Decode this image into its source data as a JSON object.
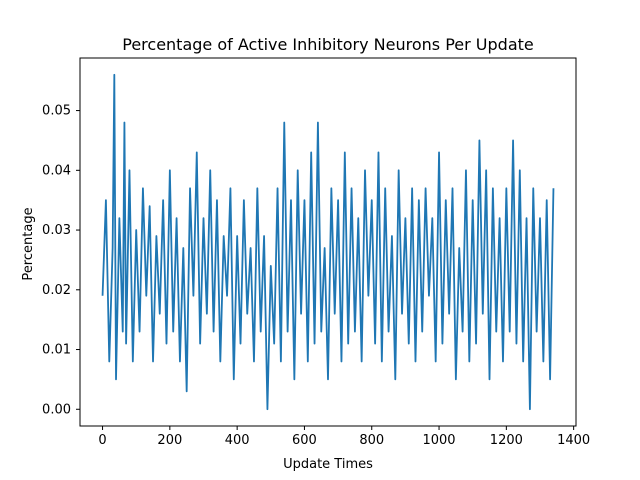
{
  "chart_data": {
    "type": "line",
    "title": "Percentage of Active Inhibitory Neurons Per Update",
    "xlabel": "Update Times",
    "ylabel": "Percentage",
    "xlim": [
      -67,
      1407
    ],
    "ylim": [
      -0.0028,
      0.0588
    ],
    "xticks": [
      0,
      200,
      400,
      600,
      800,
      1000,
      1200,
      1400
    ],
    "yticks": [
      0.0,
      0.01,
      0.02,
      0.03,
      0.04,
      0.05
    ],
    "xtick_labels": [
      "0",
      "200",
      "400",
      "600",
      "800",
      "1000",
      "1200",
      "1400"
    ],
    "ytick_labels": [
      "0.00",
      "0.01",
      "0.02",
      "0.03",
      "0.04",
      "0.05"
    ],
    "grid": false,
    "legend": false,
    "series": [
      {
        "color": "#1f77b4",
        "x": [
          0,
          10,
          20,
          30,
          35,
          40,
          50,
          60,
          65,
          70,
          80,
          90,
          100,
          110,
          120,
          130,
          140,
          150,
          160,
          170,
          180,
          190,
          200,
          210,
          220,
          230,
          240,
          250,
          260,
          270,
          280,
          290,
          300,
          310,
          320,
          330,
          340,
          350,
          360,
          370,
          380,
          390,
          400,
          410,
          420,
          430,
          440,
          450,
          460,
          470,
          480,
          490,
          500,
          510,
          520,
          530,
          540,
          550,
          560,
          570,
          580,
          590,
          600,
          610,
          620,
          630,
          640,
          650,
          660,
          670,
          680,
          690,
          700,
          710,
          720,
          730,
          740,
          750,
          760,
          770,
          780,
          790,
          800,
          810,
          820,
          830,
          840,
          850,
          860,
          870,
          880,
          890,
          900,
          910,
          920,
          930,
          940,
          950,
          960,
          970,
          980,
          990,
          1000,
          1010,
          1020,
          1030,
          1040,
          1050,
          1060,
          1070,
          1080,
          1090,
          1100,
          1110,
          1120,
          1130,
          1140,
          1150,
          1160,
          1170,
          1180,
          1190,
          1200,
          1210,
          1220,
          1230,
          1240,
          1250,
          1260,
          1270,
          1280,
          1290,
          1300,
          1310,
          1320,
          1330,
          1340
        ],
        "y": [
          0.019,
          0.035,
          0.008,
          0.027,
          0.056,
          0.005,
          0.032,
          0.013,
          0.048,
          0.011,
          0.04,
          0.008,
          0.03,
          0.013,
          0.037,
          0.019,
          0.034,
          0.008,
          0.029,
          0.016,
          0.035,
          0.011,
          0.04,
          0.013,
          0.032,
          0.008,
          0.027,
          0.003,
          0.037,
          0.019,
          0.043,
          0.011,
          0.032,
          0.016,
          0.04,
          0.013,
          0.035,
          0.008,
          0.029,
          0.019,
          0.037,
          0.005,
          0.029,
          0.011,
          0.035,
          0.016,
          0.027,
          0.008,
          0.037,
          0.013,
          0.029,
          0.0,
          0.024,
          0.011,
          0.037,
          0.008,
          0.048,
          0.013,
          0.035,
          0.005,
          0.04,
          0.016,
          0.035,
          0.008,
          0.043,
          0.011,
          0.048,
          0.013,
          0.027,
          0.005,
          0.037,
          0.016,
          0.035,
          0.008,
          0.043,
          0.011,
          0.037,
          0.013,
          0.032,
          0.008,
          0.04,
          0.019,
          0.035,
          0.011,
          0.043,
          0.008,
          0.037,
          0.013,
          0.029,
          0.005,
          0.04,
          0.016,
          0.032,
          0.011,
          0.037,
          0.008,
          0.035,
          0.013,
          0.037,
          0.019,
          0.032,
          0.008,
          0.043,
          0.011,
          0.035,
          0.016,
          0.037,
          0.005,
          0.027,
          0.013,
          0.04,
          0.008,
          0.035,
          0.011,
          0.045,
          0.016,
          0.04,
          0.005,
          0.037,
          0.013,
          0.032,
          0.008,
          0.037,
          0.013,
          0.045,
          0.011,
          0.04,
          0.008,
          0.032,
          0.0,
          0.037,
          0.013,
          0.032,
          0.008,
          0.035,
          0.005,
          0.037
        ]
      }
    ]
  }
}
